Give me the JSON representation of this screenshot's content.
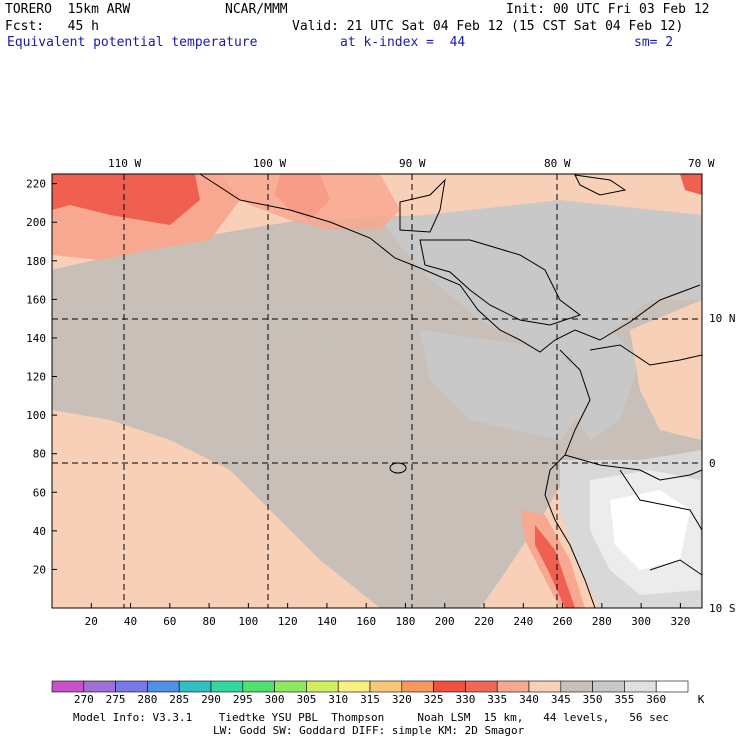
{
  "header": {
    "model": "TORERO  15km ARW",
    "center": "NCAR/MMM",
    "init": "Init: 00 UTC Fri 03 Feb 12",
    "fcst": "Fcst:   45 h",
    "valid": "Valid: 21 UTC Sat 04 Feb 12 (15 CST Sat 04 Feb 12)",
    "field": "Equivalent potential temperature",
    "level": "at k-index =  44",
    "smooth": "sm= 2"
  },
  "map": {
    "lon_labels": [
      "110 W",
      "100 W",
      "90 W",
      "80 W",
      "70 W"
    ],
    "lat_labels": [
      "10 N",
      "0",
      "10 S"
    ],
    "grid_y_ticks": [
      "220",
      "200",
      "180",
      "160",
      "140",
      "120",
      "100",
      "80",
      "60",
      "40",
      "20"
    ],
    "grid_x_ticks": [
      "20",
      "40",
      "60",
      "80",
      "100",
      "120",
      "140",
      "160",
      "180",
      "200",
      "220",
      "240",
      "260",
      "280",
      "300",
      "320"
    ]
  },
  "colorbar": {
    "unit": "K",
    "labels": [
      "270",
      "275",
      "280",
      "285",
      "290",
      "295",
      "300",
      "305",
      "310",
      "315",
      "320",
      "325",
      "330",
      "335",
      "340",
      "345",
      "350",
      "355",
      "360"
    ],
    "colors": [
      "#c850c8",
      "#a070d8",
      "#7878e8",
      "#5090e8",
      "#30c0c0",
      "#30d8a0",
      "#50e070",
      "#90e860",
      "#d0f060",
      "#f8f080",
      "#f8c878",
      "#f89860",
      "#f05040",
      "#f06858",
      "#f8a890",
      "#f8d0b8",
      "#c8c0b8",
      "#c8c8c8",
      "#e0e0e0",
      "#ffffff"
    ]
  },
  "footer": {
    "line1": "Model Info: V3.3.1    Tiedtke YSU PBL  Thompson     Noah LSM  15 km,   44 levels,   56 sec",
    "line2": "LW: Godd SW: Goddard DIFF: simple KM: 2D Smagor"
  }
}
